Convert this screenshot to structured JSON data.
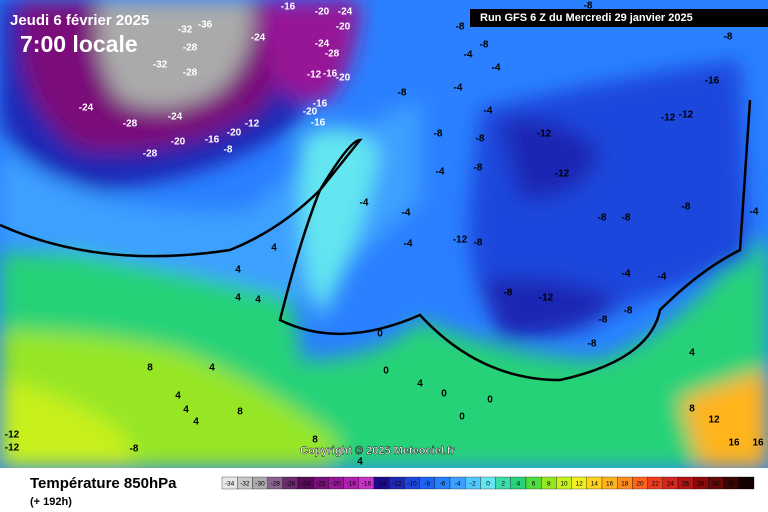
{
  "header": {
    "date": "Jeudi 6 février 2025",
    "time": "7:00 locale",
    "run": "Run GFS 6 Z du Mercredi 29 janvier 2025",
    "copyright": "Copyright © 2025 Meteociel.fr"
  },
  "legend": {
    "title": "Température 850hPa",
    "subtitle": "(+ 192h)",
    "ticks": [
      "-34",
      "-32",
      "-30",
      "-28",
      "-26",
      "-24",
      "-22",
      "-20",
      "-18",
      "-16",
      "-14",
      "-12",
      "-10",
      "-8",
      "-6",
      "-4",
      "-2",
      "0",
      "2",
      "4",
      "6",
      "8",
      "10",
      "12",
      "14",
      "16",
      "18",
      "20",
      "22",
      "24",
      "26",
      "28",
      "30",
      "32",
      "34"
    ],
    "colors": [
      "#e6e6e6",
      "#c8c8c8",
      "#aaaaaa",
      "#8c648c",
      "#6e2a6e",
      "#5a0a5a",
      "#7a107a",
      "#961896",
      "#b020b0",
      "#c832c8",
      "#1e0a8c",
      "#1e28b4",
      "#1e46dc",
      "#1e64f0",
      "#2882ff",
      "#3ca0ff",
      "#50c8ff",
      "#64e6f0",
      "#3cdcaa",
      "#28d278",
      "#50dc3c",
      "#96e628",
      "#c8f01e",
      "#f0f01e",
      "#ffd21e",
      "#ffb41e",
      "#ff8c1e",
      "#ff641e",
      "#f03c1e",
      "#d2281e",
      "#b41414",
      "#8c0a0a",
      "#640a0a",
      "#3c0505",
      "#140000"
    ]
  },
  "map_labels": [
    "-36",
    "-32",
    "-28",
    "-24",
    "-32",
    "-28",
    "-24",
    "-28",
    "-24",
    "-28",
    "-20",
    "-16",
    "-20",
    "-12",
    "-8",
    "-16",
    "-20",
    "-24",
    "-20",
    "-24",
    "-28",
    "-12",
    "-16",
    "-20",
    "-16",
    "-20",
    "-16",
    "-8",
    "-8",
    "-8",
    "-4",
    "-4",
    "-4",
    "-4",
    "-8",
    "-8",
    "-8",
    "-4",
    "-12",
    "-12",
    "-16",
    "-12",
    "-12",
    "-8",
    "-8",
    "-8",
    "-4",
    "-4",
    "-4",
    "-12",
    "-8",
    "-8",
    "-12",
    "-4",
    "-4",
    "-8",
    "-8",
    "-8",
    "0",
    "0",
    "4",
    "0",
    "0",
    "0",
    "4",
    "4",
    "4",
    "4",
    "4",
    "8",
    "4",
    "4",
    "4",
    "8",
    "-12",
    "-12",
    "-8",
    "8",
    "4",
    "12",
    "16",
    "16",
    "8",
    "4",
    "-8",
    "-8",
    "-4"
  ]
}
